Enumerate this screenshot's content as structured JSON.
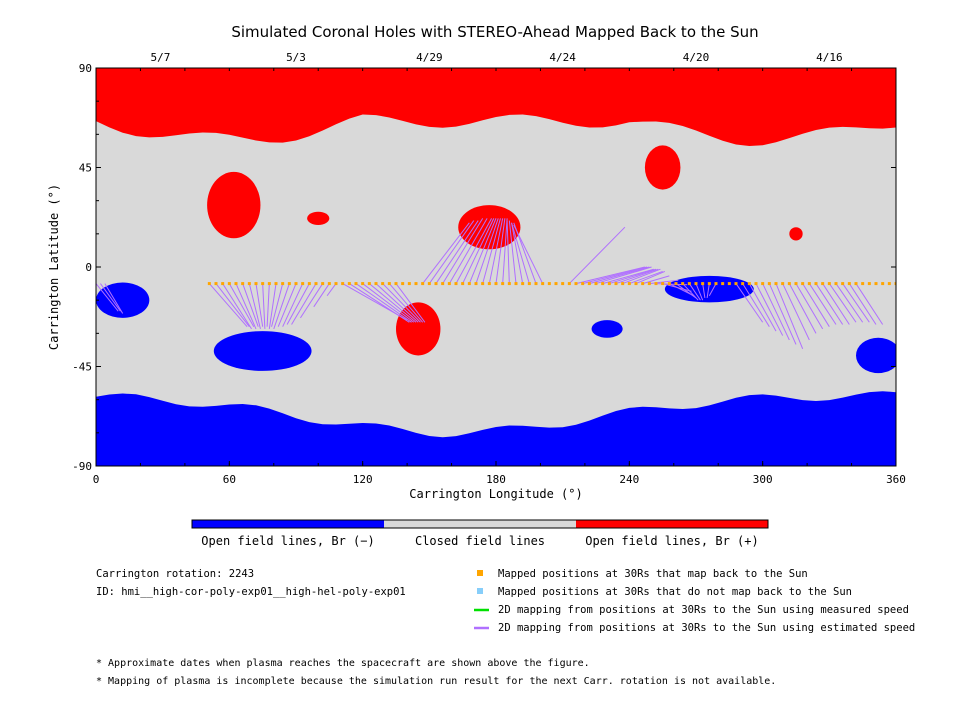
{
  "colors": {
    "open_negative": "#0000ff",
    "closed": "#d9d9d9",
    "open_positive": "#ff0000",
    "mapped_positions": "#ffa500",
    "unmapped_positions": "#87cefa",
    "measured_speed_line": "#00e000",
    "estimated_speed_line": "#b070ff"
  },
  "chart_data": {
    "type": "heatmap",
    "title": "Simulated Coronal Holes with STEREO-Ahead Mapped Back to the Sun",
    "xlabel": "Carrington Longitude (°)",
    "ylabel": "Carrington Latitude (°)",
    "xlim": [
      0,
      360
    ],
    "ylim": [
      -90,
      90
    ],
    "x_ticks": [
      "0",
      "60",
      "120",
      "180",
      "240",
      "300",
      "360"
    ],
    "y_ticks": [
      "90",
      "45",
      "0",
      "-45",
      "-90"
    ],
    "top_axis": {
      "labels": [
        {
          "lon": 29,
          "text": "5/7"
        },
        {
          "lon": 90,
          "text": "5/3"
        },
        {
          "lon": 150,
          "text": "4/29"
        },
        {
          "lon": 210,
          "text": "4/24"
        },
        {
          "lon": 270,
          "text": "4/20"
        },
        {
          "lon": 330,
          "text": "4/16"
        }
      ]
    },
    "grid": false,
    "colorbar": {
      "labels": [
        "Open field lines, Br (−)",
        "Closed field lines",
        "Open field lines, Br (+)"
      ]
    },
    "regions": {
      "north_polar_positive": {
        "boundary_lat": 66,
        "boundary_lat_min": 52
      },
      "south_polar_negative": {
        "boundary_lat": -58,
        "boundary_lat_min": -75
      },
      "positive_holes": [
        {
          "lon": 62,
          "lat": 28,
          "rlon": 12,
          "rlat": 15
        },
        {
          "lon": 177,
          "lat": 18,
          "rlon": 14,
          "rlat": 10
        },
        {
          "lon": 145,
          "lat": -28,
          "rlon": 10,
          "rlat": 12
        },
        {
          "lon": 255,
          "lat": 45,
          "rlon": 8,
          "rlat": 10
        },
        {
          "lon": 315,
          "lat": 15,
          "rlon": 3,
          "rlat": 3
        },
        {
          "lon": 100,
          "lat": 22,
          "rlon": 5,
          "rlat": 3
        }
      ],
      "negative_holes": [
        {
          "lon": 12,
          "lat": -15,
          "rlon": 12,
          "rlat": 8
        },
        {
          "lon": 276,
          "lat": -10,
          "rlon": 20,
          "rlat": 6
        },
        {
          "lon": 75,
          "lat": -38,
          "rlon": 22,
          "rlat": 9
        },
        {
          "lon": 230,
          "lat": -28,
          "rlon": 7,
          "rlat": 4
        },
        {
          "lon": 352,
          "lat": -40,
          "rlon": 10,
          "rlat": 8
        }
      ]
    },
    "mapped_positions": {
      "lat": -7.5,
      "lon_start": 51,
      "lon_end": 360,
      "step": 3
    },
    "estimated_speed_lines": [
      {
        "from_lon": 51,
        "to_lon": 68,
        "to_lat": -27
      },
      {
        "from_lon": 54,
        "to_lon": 69,
        "to_lat": -27
      },
      {
        "from_lon": 57,
        "to_lon": 70,
        "to_lat": -28
      },
      {
        "from_lon": 60,
        "to_lon": 71,
        "to_lat": -27
      },
      {
        "from_lon": 63,
        "to_lon": 72,
        "to_lat": -28
      },
      {
        "from_lon": 66,
        "to_lon": 73,
        "to_lat": -27
      },
      {
        "from_lon": 69,
        "to_lon": 74,
        "to_lat": -28
      },
      {
        "from_lon": 72,
        "to_lon": 75,
        "to_lat": -27
      },
      {
        "from_lon": 75,
        "to_lon": 76,
        "to_lat": -28
      },
      {
        "from_lon": 78,
        "to_lon": 77,
        "to_lat": -27
      },
      {
        "from_lon": 81,
        "to_lon": 78,
        "to_lat": -28
      },
      {
        "from_lon": 84,
        "to_lon": 79,
        "to_lat": -27
      },
      {
        "from_lon": 87,
        "to_lon": 80,
        "to_lat": -28
      },
      {
        "from_lon": 90,
        "to_lon": 82,
        "to_lat": -27
      },
      {
        "from_lon": 93,
        "to_lon": 84,
        "to_lat": -27
      },
      {
        "from_lon": 96,
        "to_lon": 86,
        "to_lat": -26
      },
      {
        "from_lon": 99,
        "to_lon": 88,
        "to_lat": -26
      },
      {
        "from_lon": 102,
        "to_lon": 92,
        "to_lat": -23
      },
      {
        "from_lon": 105,
        "to_lon": 98,
        "to_lat": -18
      },
      {
        "from_lon": 108,
        "to_lon": 104,
        "to_lat": -13
      },
      {
        "from_lon": 111,
        "to_lon": 140,
        "to_lat": -24
      },
      {
        "from_lon": 114,
        "to_lon": 141,
        "to_lat": -25
      },
      {
        "from_lon": 117,
        "to_lon": 142,
        "to_lat": -25
      },
      {
        "from_lon": 120,
        "to_lon": 143,
        "to_lat": -25
      },
      {
        "from_lon": 123,
        "to_lon": 144,
        "to_lat": -25
      },
      {
        "from_lon": 126,
        "to_lon": 145,
        "to_lat": -25
      },
      {
        "from_lon": 129,
        "to_lon": 146,
        "to_lat": -25
      },
      {
        "from_lon": 132,
        "to_lon": 147,
        "to_lat": -25
      },
      {
        "from_lon": 135,
        "to_lon": 148,
        "to_lat": -25
      },
      {
        "from_lon": 147,
        "to_lon": 168,
        "to_lat": 20
      },
      {
        "from_lon": 150,
        "to_lon": 170,
        "to_lat": 21
      },
      {
        "from_lon": 153,
        "to_lon": 172,
        "to_lat": 21
      },
      {
        "from_lon": 156,
        "to_lon": 174,
        "to_lat": 22
      },
      {
        "from_lon": 159,
        "to_lon": 176,
        "to_lat": 22
      },
      {
        "from_lon": 162,
        "to_lon": 178,
        "to_lat": 22
      },
      {
        "from_lon": 165,
        "to_lon": 179,
        "to_lat": 22
      },
      {
        "from_lon": 168,
        "to_lon": 180,
        "to_lat": 22
      },
      {
        "from_lon": 171,
        "to_lon": 181,
        "to_lat": 22
      },
      {
        "from_lon": 174,
        "to_lon": 182,
        "to_lat": 22
      },
      {
        "from_lon": 177,
        "to_lon": 183,
        "to_lat": 22
      },
      {
        "from_lon": 180,
        "to_lon": 184,
        "to_lat": 22
      },
      {
        "from_lon": 183,
        "to_lon": 185,
        "to_lat": 22
      },
      {
        "from_lon": 186,
        "to_lon": 185,
        "to_lat": 21
      },
      {
        "from_lon": 189,
        "to_lon": 186,
        "to_lat": 21
      },
      {
        "from_lon": 192,
        "to_lon": 187,
        "to_lat": 20
      },
      {
        "from_lon": 195,
        "to_lon": 187,
        "to_lat": 20
      },
      {
        "from_lon": 198,
        "to_lon": 188,
        "to_lat": 20
      },
      {
        "from_lon": 201,
        "to_lon": 188,
        "to_lat": 19
      },
      {
        "from_lon": 213,
        "to_lon": 238,
        "to_lat": 18
      },
      {
        "from_lon": 216,
        "to_lon": 247,
        "to_lat": 0
      },
      {
        "from_lon": 219,
        "to_lon": 248,
        "to_lat": 0
      },
      {
        "from_lon": 222,
        "to_lon": 249,
        "to_lat": 0
      },
      {
        "from_lon": 225,
        "to_lon": 250,
        "to_lat": 0
      },
      {
        "from_lon": 228,
        "to_lon": 251,
        "to_lat": -1
      },
      {
        "from_lon": 231,
        "to_lon": 252,
        "to_lat": -1
      },
      {
        "from_lon": 234,
        "to_lon": 253,
        "to_lat": -1
      },
      {
        "from_lon": 237,
        "to_lon": 254,
        "to_lat": -1
      },
      {
        "from_lon": 240,
        "to_lon": 255,
        "to_lat": -2
      },
      {
        "from_lon": 243,
        "to_lon": 256,
        "to_lat": -2
      },
      {
        "from_lon": 246,
        "to_lon": 258,
        "to_lat": -4
      },
      {
        "from_lon": 249,
        "to_lon": 262,
        "to_lat": -6
      },
      {
        "from_lon": 252,
        "to_lon": 266,
        "to_lat": -8
      },
      {
        "from_lon": 255,
        "to_lon": 268,
        "to_lat": -11
      },
      {
        "from_lon": 258,
        "to_lon": 269,
        "to_lat": -13
      },
      {
        "from_lon": 261,
        "to_lon": 270,
        "to_lat": -14
      },
      {
        "from_lon": 264,
        "to_lon": 271,
        "to_lat": -15
      },
      {
        "from_lon": 267,
        "to_lon": 272,
        "to_lat": -15
      },
      {
        "from_lon": 270,
        "to_lon": 273,
        "to_lat": -15
      },
      {
        "from_lon": 273,
        "to_lon": 274,
        "to_lat": -14
      },
      {
        "from_lon": 276,
        "to_lon": 275,
        "to_lat": -14
      },
      {
        "from_lon": 279,
        "to_lon": 276,
        "to_lat": -13
      },
      {
        "from_lon": 288,
        "to_lon": 300,
        "to_lat": -25
      },
      {
        "from_lon": 291,
        "to_lon": 303,
        "to_lat": -27
      },
      {
        "from_lon": 294,
        "to_lon": 306,
        "to_lat": -29
      },
      {
        "from_lon": 297,
        "to_lon": 309,
        "to_lat": -31
      },
      {
        "from_lon": 300,
        "to_lon": 312,
        "to_lat": -33
      },
      {
        "from_lon": 303,
        "to_lon": 315,
        "to_lat": -35
      },
      {
        "from_lon": 306,
        "to_lon": 318,
        "to_lat": -37
      },
      {
        "from_lon": 309,
        "to_lon": 321,
        "to_lat": -33
      },
      {
        "from_lon": 312,
        "to_lon": 324,
        "to_lat": -30
      },
      {
        "from_lon": 315,
        "to_lon": 327,
        "to_lat": -28
      },
      {
        "from_lon": 318,
        "to_lon": 330,
        "to_lat": -27
      },
      {
        "from_lon": 321,
        "to_lon": 333,
        "to_lat": -26
      },
      {
        "from_lon": 324,
        "to_lon": 336,
        "to_lat": -26
      },
      {
        "from_lon": 327,
        "to_lon": 339,
        "to_lat": -26
      },
      {
        "from_lon": 330,
        "to_lon": 342,
        "to_lat": -25
      },
      {
        "from_lon": 333,
        "to_lon": 345,
        "to_lat": -25
      },
      {
        "from_lon": 336,
        "to_lon": 348,
        "to_lat": -25
      },
      {
        "from_lon": 339,
        "to_lon": 351,
        "to_lat": -26
      },
      {
        "from_lon": 342,
        "to_lon": 354,
        "to_lat": -26
      },
      {
        "from_lon": 0,
        "to_lon": 10,
        "to_lat": -20
      },
      {
        "from_lon": 2,
        "to_lon": 11,
        "to_lat": -20
      },
      {
        "from_lon": 4,
        "to_lon": 12,
        "to_lat": -21
      }
    ]
  },
  "info": {
    "carrington_rotation": "Carrington rotation: 2243",
    "run_id": "ID: hmi__high-cor-poly-exp01__high-hel-poly-exp01"
  },
  "legend": {
    "items": [
      {
        "marker": "square",
        "color": "#ffa500",
        "text": "Mapped positions at 30Rs that map back to the Sun"
      },
      {
        "marker": "square",
        "color": "#87cefa",
        "text": "Mapped positions at 30Rs that do not map back to the Sun"
      },
      {
        "marker": "line",
        "color": "#00e000",
        "text": "2D mapping from positions at 30Rs to the Sun using measured speed"
      },
      {
        "marker": "line",
        "color": "#b070ff",
        "text": "2D mapping from positions at 30Rs to the Sun using estimated speed"
      }
    ]
  },
  "notes": [
    "* Approximate dates when plasma reaches the spacecraft are shown above the figure.",
    "* Mapping of plasma is incomplete because the simulation run result for the next Carr. rotation is not available."
  ]
}
